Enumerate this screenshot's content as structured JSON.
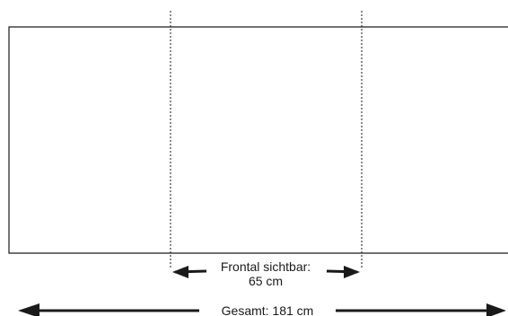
{
  "front_visible": {
    "label": "Frontal sichtbar:",
    "value": "65 cm"
  },
  "total": {
    "label": "Gesamt: 181 cm"
  },
  "colors": {
    "line": "#1a1a1a",
    "background": "#ffffff"
  }
}
